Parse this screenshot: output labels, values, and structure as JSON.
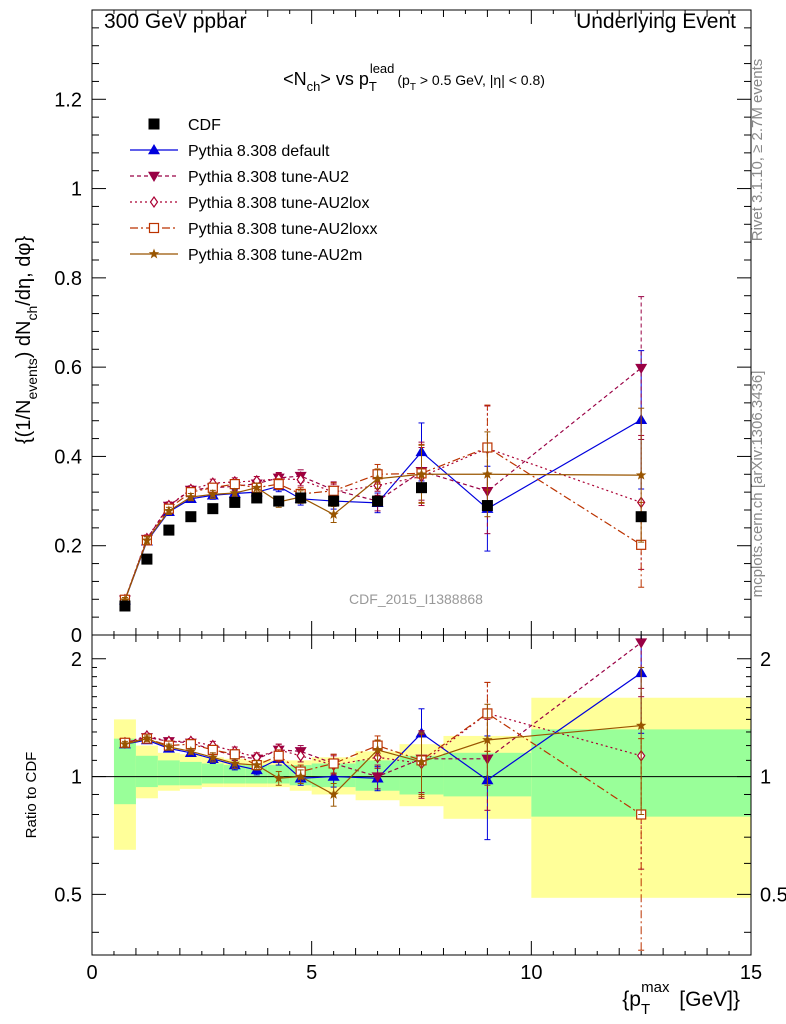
{
  "header": {
    "left": "300 GeV ppbar",
    "right": "Underlying Event"
  },
  "side_labels": {
    "rivet": "Rivet 3.1.10, ≥ 2.7M events",
    "mcplots": "mcplots.cern.ch [arXiv:1306.3436]"
  },
  "watermark": "CDF_2015_I1388868",
  "colors": {
    "data": "#000000",
    "default": "#0000dd",
    "au2": "#990044",
    "au2lox": "#aa0033",
    "au2loxx": "#bb3300",
    "au2m": "#995500",
    "band_green": "#99ff99",
    "band_yellow": "#ffff99"
  },
  "chart_data": {
    "type": "scatter",
    "title": "<N_ch> vs p_T^lead (p_T > 0.5 GeV, |η| < 0.8)",
    "title_parts": {
      "lt": "<N",
      "ch": "ch",
      "gt": "> vs p",
      "T": "T",
      "lead": "lead",
      "cut": "(p",
      "cutT": "T",
      "cutRest": " > 0.5 GeV, |η| < 0.8)"
    },
    "ylabel": "{(1/N_events) dN_ch/dη, dφ}",
    "ylabel_parts": {
      "a": "{(1/N",
      "events": "events",
      "b": ") dN",
      "ch": "ch",
      "c": "/dη, dφ}"
    },
    "xlabel": "{p_T^max [GeV]}",
    "xlabel_parts": {
      "a": "{p",
      "T": "T",
      "max": "max",
      "b": " [GeV]}"
    },
    "ratio_ylabel": "Ratio to CDF",
    "xlim": [
      0,
      15
    ],
    "ylim": [
      0,
      1.4
    ],
    "ratio_ylim": [
      0.35,
      2.3
    ],
    "xticks": [
      "0",
      "5",
      "10",
      "15"
    ],
    "yticks": [
      "0",
      "0.2",
      "0.4",
      "0.6",
      "0.8",
      "1",
      "1.2"
    ],
    "ratio_yticks": [
      "0.5",
      "1",
      "2"
    ],
    "legend_position": "top-left",
    "x": [
      0.75,
      1.25,
      1.75,
      2.25,
      2.75,
      3.25,
      3.75,
      4.25,
      4.75,
      5.5,
      6.5,
      7.5,
      9.0,
      12.5
    ],
    "data_series": {
      "name": "CDF",
      "values": [
        0.065,
        0.17,
        0.235,
        0.265,
        0.283,
        0.297,
        0.307,
        0.3,
        0.307,
        0.3,
        0.3,
        0.33,
        0.29,
        0.265
      ]
    },
    "band_bins": [
      {
        "x0": 0.5,
        "x1": 1.0,
        "g0": 0.85,
        "g1": 1.25,
        "y0": 0.65,
        "y1": 1.4
      },
      {
        "x0": 1.0,
        "x1": 1.5,
        "g0": 0.94,
        "g1": 1.13,
        "y0": 0.88,
        "y1": 1.2
      },
      {
        "x0": 1.5,
        "x1": 2.0,
        "g0": 0.95,
        "g1": 1.1,
        "y0": 0.92,
        "y1": 1.15
      },
      {
        "x0": 2.0,
        "x1": 2.5,
        "g0": 0.95,
        "g1": 1.09,
        "y0": 0.93,
        "y1": 1.14
      },
      {
        "x0": 2.5,
        "x1": 3.0,
        "g0": 0.96,
        "g1": 1.08,
        "y0": 0.94,
        "y1": 1.12
      },
      {
        "x0": 3.0,
        "x1": 3.5,
        "g0": 0.96,
        "g1": 1.07,
        "y0": 0.94,
        "y1": 1.11
      },
      {
        "x0": 3.5,
        "x1": 4.0,
        "g0": 0.96,
        "g1": 1.07,
        "y0": 0.94,
        "y1": 1.1
      },
      {
        "x0": 4.0,
        "x1": 4.5,
        "g0": 0.96,
        "g1": 1.07,
        "y0": 0.94,
        "y1": 1.1
      },
      {
        "x0": 4.5,
        "x1": 5.0,
        "g0": 0.95,
        "g1": 1.07,
        "y0": 0.92,
        "y1": 1.1
      },
      {
        "x0": 5.0,
        "x1": 6.0,
        "g0": 0.94,
        "g1": 1.08,
        "y0": 0.9,
        "y1": 1.12
      },
      {
        "x0": 6.0,
        "x1": 7.0,
        "g0": 0.92,
        "g1": 1.1,
        "y0": 0.87,
        "y1": 1.16
      },
      {
        "x0": 7.0,
        "x1": 8.0,
        "g0": 0.9,
        "g1": 1.13,
        "y0": 0.84,
        "y1": 1.21
      },
      {
        "x0": 8.0,
        "x1": 10.0,
        "g0": 0.89,
        "g1": 1.15,
        "y0": 0.78,
        "y1": 1.27
      },
      {
        "x0": 10.0,
        "x1": 15.0,
        "g0": 0.79,
        "g1": 1.32,
        "y0": 0.49,
        "y1": 1.59
      }
    ],
    "series": [
      {
        "name": "Pythia 8.308 default",
        "key": "default",
        "marker": "triangle-up",
        "dash": "",
        "values": [
          0.078,
          0.21,
          0.276,
          0.305,
          0.313,
          0.317,
          0.32,
          0.333,
          0.305,
          0.3,
          0.296,
          0.41,
          0.283,
          0.482
        ],
        "errors": [
          0.006,
          0.008,
          0.008,
          0.008,
          0.009,
          0.009,
          0.01,
          0.012,
          0.014,
          0.018,
          0.022,
          0.065,
          0.095,
          0.155
        ],
        "ratio": [
          1.21,
          1.24,
          1.18,
          1.15,
          1.11,
          1.07,
          1.04,
          1.11,
          0.99,
          1.0,
          0.99,
          1.29,
          0.98,
          1.84
        ],
        "ratio_errors": [
          0.02,
          0.02,
          0.02,
          0.02,
          0.03,
          0.03,
          0.03,
          0.04,
          0.04,
          0.06,
          0.07,
          0.2,
          0.29,
          0.55
        ]
      },
      {
        "name": "Pythia 8.308 tune-AU2",
        "key": "au2",
        "marker": "triangle-down",
        "dash": "4,3",
        "values": [
          0.079,
          0.215,
          0.289,
          0.325,
          0.33,
          0.333,
          0.339,
          0.352,
          0.356,
          0.325,
          0.3,
          0.367,
          0.322,
          0.598
        ],
        "errors": [
          0.006,
          0.008,
          0.008,
          0.008,
          0.009,
          0.009,
          0.01,
          0.012,
          0.014,
          0.018,
          0.022,
          0.065,
          0.095,
          0.16
        ],
        "ratio": [
          1.22,
          1.26,
          1.23,
          1.22,
          1.17,
          1.13,
          1.11,
          1.17,
          1.16,
          1.08,
          1.0,
          1.11,
          1.11,
          2.2
        ],
        "ratio_errors": [
          0.02,
          0.02,
          0.02,
          0.02,
          0.03,
          0.03,
          0.03,
          0.04,
          0.04,
          0.06,
          0.07,
          0.2,
          0.29,
          0.6
        ]
      },
      {
        "name": "Pythia 8.308 tune-AU2lox",
        "key": "au2lox",
        "marker": "diamond",
        "dash": "2,3",
        "values": [
          0.079,
          0.216,
          0.29,
          0.326,
          0.34,
          0.343,
          0.345,
          0.35,
          0.348,
          0.32,
          0.335,
          0.355,
          0.418,
          0.297
        ],
        "errors": [
          0.006,
          0.008,
          0.008,
          0.008,
          0.009,
          0.009,
          0.01,
          0.012,
          0.014,
          0.018,
          0.022,
          0.065,
          0.095,
          0.15
        ],
        "ratio": [
          1.22,
          1.27,
          1.23,
          1.23,
          1.2,
          1.16,
          1.12,
          1.17,
          1.13,
          1.07,
          1.12,
          1.08,
          1.45,
          1.13
        ],
        "ratio_errors": [
          0.02,
          0.02,
          0.02,
          0.02,
          0.03,
          0.03,
          0.03,
          0.04,
          0.04,
          0.06,
          0.07,
          0.2,
          0.29,
          0.55
        ]
      },
      {
        "name": "Pythia 8.308 tune-AU2loxx",
        "key": "au2loxx",
        "marker": "square-open",
        "dash": "8,3,2,3",
        "values": [
          0.079,
          0.212,
          0.283,
          0.32,
          0.33,
          0.338,
          0.33,
          0.338,
          0.316,
          0.323,
          0.36,
          0.362,
          0.42,
          0.202
        ],
        "errors": [
          0.006,
          0.008,
          0.008,
          0.008,
          0.009,
          0.009,
          0.01,
          0.012,
          0.014,
          0.018,
          0.022,
          0.065,
          0.095,
          0.095
        ],
        "ratio": [
          1.22,
          1.25,
          1.2,
          1.21,
          1.17,
          1.14,
          1.07,
          1.13,
          1.03,
          1.08,
          1.2,
          1.1,
          1.45,
          0.8
        ],
        "ratio_errors": [
          0.02,
          0.02,
          0.02,
          0.02,
          0.03,
          0.03,
          0.03,
          0.04,
          0.04,
          0.06,
          0.07,
          0.2,
          0.29,
          0.45
        ]
      },
      {
        "name": "Pythia 8.308 tune-AU2m",
        "key": "au2m",
        "marker": "star",
        "dash": "",
        "values": [
          0.078,
          0.212,
          0.278,
          0.309,
          0.315,
          0.318,
          0.33,
          0.298,
          0.309,
          0.27,
          0.35,
          0.36,
          0.36,
          0.358
        ],
        "errors": [
          0.006,
          0.008,
          0.008,
          0.008,
          0.009,
          0.009,
          0.01,
          0.012,
          0.014,
          0.018,
          0.022,
          0.065,
          0.095,
          0.15
        ],
        "ratio": [
          1.21,
          1.25,
          1.19,
          1.16,
          1.12,
          1.08,
          1.07,
          0.99,
          1.0,
          0.9,
          1.17,
          1.09,
          1.24,
          1.35
        ],
        "ratio_errors": [
          0.02,
          0.02,
          0.02,
          0.02,
          0.03,
          0.03,
          0.03,
          0.04,
          0.04,
          0.06,
          0.07,
          0.2,
          0.29,
          0.55
        ]
      }
    ]
  }
}
